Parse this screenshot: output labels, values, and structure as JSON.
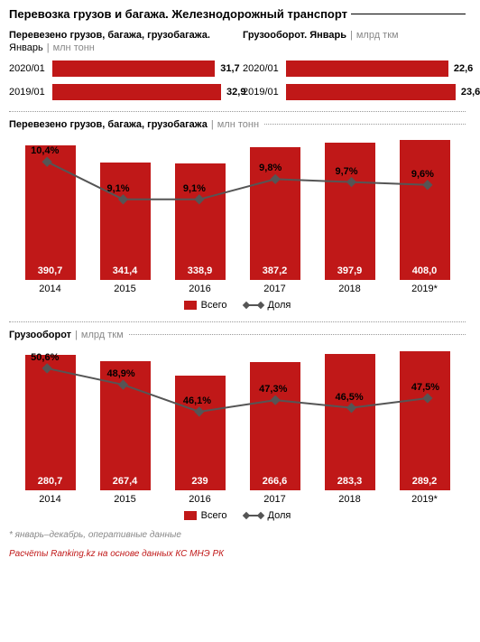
{
  "colors": {
    "bar": "#c01818",
    "line": "#555555",
    "marker": "#555555",
    "text_muted": "#888888"
  },
  "main_title": "Перевозка грузов и багажа. Железнодорожный транспорт",
  "top_left": {
    "title": "Перевезено грузов, багажа, грузобагажа.",
    "sub_prefix": "Январь",
    "unit": "млн тонн",
    "max": 35,
    "rows": [
      {
        "label": "2020/01",
        "value": 31.7,
        "display": "31,7"
      },
      {
        "label": "2019/01",
        "value": 32.9,
        "display": "32,9"
      }
    ]
  },
  "top_right": {
    "title": "Грузооборот. Январь",
    "unit": "млрд ткм",
    "max": 25,
    "rows": [
      {
        "label": "2020/01",
        "value": 22.6,
        "display": "22,6"
      },
      {
        "label": "2019/01",
        "value": 23.6,
        "display": "23,6"
      }
    ]
  },
  "chart1": {
    "title": "Перевезено грузов, багажа, грузобагажа",
    "unit": "млн тонн",
    "y_max": 420,
    "years": [
      "2014",
      "2015",
      "2016",
      "2017",
      "2018",
      "2019*"
    ],
    "bars": [
      390.7,
      341.4,
      338.9,
      387.2,
      397.9,
      408.0
    ],
    "bar_labels": [
      "390,7",
      "341,4",
      "338,9",
      "387,2",
      "397,9",
      "408,0"
    ],
    "line_pct": [
      10.4,
      9.1,
      9.1,
      9.8,
      9.7,
      9.6
    ],
    "line_labels": [
      "10,4%",
      "9,1%",
      "9,1%",
      "9,8%",
      "9,7%",
      "9,6%"
    ],
    "line_min": 8.5,
    "line_max": 11.0,
    "legend": {
      "a": "Всего",
      "b": "Доля"
    }
  },
  "chart2": {
    "title": "Грузооборот",
    "unit": "млрд ткм",
    "y_max": 300,
    "years": [
      "2014",
      "2015",
      "2016",
      "2017",
      "2018",
      "2019*"
    ],
    "bars": [
      280.7,
      267.4,
      239,
      266.6,
      283.3,
      289.2
    ],
    "bar_labels": [
      "280,7",
      "267,4",
      "239",
      "266,6",
      "283,3",
      "289,2"
    ],
    "line_pct": [
      50.6,
      48.9,
      46.1,
      47.3,
      46.5,
      47.5
    ],
    "line_labels": [
      "50,6%",
      "48,9%",
      "46,1%",
      "47,3%",
      "46,5%",
      "47,5%"
    ],
    "line_min": 44.5,
    "line_max": 52.0,
    "legend": {
      "a": "Всего",
      "b": "Доля"
    }
  },
  "footnote": "* январь–декабрь, оперативные данные",
  "credit": "Расчёты Ranking.kz на основе данных КС МНЭ РК"
}
